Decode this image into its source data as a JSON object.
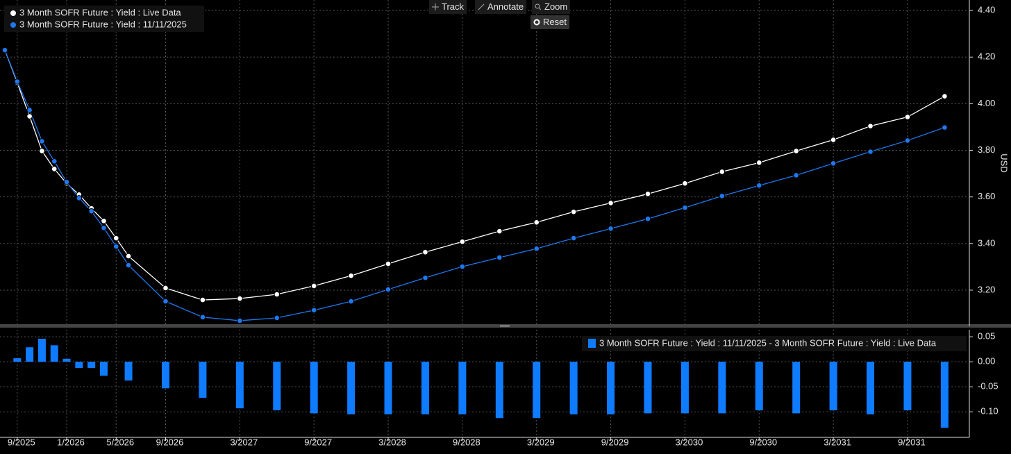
{
  "chart_data": [
    {
      "type": "line",
      "y_label": "USD",
      "x": [
        "2025-08",
        "2025-09",
        "2025-10",
        "2025-11",
        "2025-12",
        "2026-01",
        "2026-02",
        "2026-03",
        "2026-04",
        "2026-05",
        "2026-06",
        "2026-09",
        "2026-12",
        "2027-03",
        "2027-06",
        "2027-09",
        "2027-12",
        "2028-03",
        "2028-06",
        "2028-09",
        "2028-12",
        "2029-03",
        "2029-06",
        "2029-09",
        "2029-12",
        "2030-03",
        "2030-06",
        "2030-09",
        "2030-12",
        "2031-03",
        "2031-06",
        "2031-09",
        "2031-12"
      ],
      "series": [
        {
          "name": "3 Month SOFR Future : Yield : Live Data",
          "color": "#ffffff",
          "values": [
            4.23,
            4.09,
            3.946,
            3.797,
            3.72,
            3.658,
            3.61,
            3.551,
            3.497,
            3.423,
            3.346,
            3.209,
            3.158,
            3.164,
            3.182,
            3.218,
            3.262,
            3.313,
            3.363,
            3.408,
            3.453,
            3.491,
            3.536,
            3.574,
            3.613,
            3.658,
            3.708,
            3.747,
            3.797,
            3.845,
            3.904,
            3.943,
            4.032
          ]
        },
        {
          "name": "3 Month SOFR Future : Yield : 11/11/2025",
          "color": "#1f78f0",
          "values": [
            4.23,
            4.095,
            3.973,
            3.839,
            3.753,
            3.664,
            3.595,
            3.539,
            3.467,
            3.387,
            3.307,
            3.152,
            3.084,
            3.069,
            3.081,
            3.114,
            3.152,
            3.203,
            3.253,
            3.301,
            3.34,
            3.378,
            3.423,
            3.464,
            3.506,
            3.554,
            3.604,
            3.649,
            3.693,
            3.744,
            3.794,
            3.842,
            3.898
          ]
        }
      ],
      "xlim": [
        "2025-08",
        "2032-02"
      ],
      "xticks": [
        {
          "value": "2025-09",
          "label": "9/2025"
        },
        {
          "value": "2026-01",
          "label": "1/2026"
        },
        {
          "value": "2026-05",
          "label": "5/2026"
        },
        {
          "value": "2026-09",
          "label": "9/2026"
        },
        {
          "value": "2027-03",
          "label": "3/2027"
        },
        {
          "value": "2027-09",
          "label": "9/2027"
        },
        {
          "value": "2028-03",
          "label": "3/2028"
        },
        {
          "value": "2028-09",
          "label": "9/2028"
        },
        {
          "value": "2029-03",
          "label": "3/2029"
        },
        {
          "value": "2029-09",
          "label": "9/2029"
        },
        {
          "value": "2030-03",
          "label": "3/2030"
        },
        {
          "value": "2030-09",
          "label": "9/2030"
        },
        {
          "value": "2031-03",
          "label": "3/2031"
        },
        {
          "value": "2031-09",
          "label": "9/2031"
        }
      ],
      "ylim": [
        3.045,
        4.445
      ],
      "yticks": [
        {
          "value": 3.2,
          "label": "3.20"
        },
        {
          "value": 3.4,
          "label": "3.40"
        },
        {
          "value": 3.6,
          "label": "3.60"
        },
        {
          "value": 3.8,
          "label": "3.80"
        },
        {
          "value": 4.0,
          "label": "4.00"
        },
        {
          "value": 4.2,
          "label": "4.20"
        },
        {
          "value": 4.4,
          "label": "4.40"
        }
      ],
      "grid": true,
      "legend": "upper left"
    },
    {
      "type": "bar",
      "x": [
        "2025-08",
        "2025-09",
        "2025-10",
        "2025-11",
        "2025-12",
        "2026-01",
        "2026-02",
        "2026-03",
        "2026-04",
        "2026-05",
        "2026-06",
        "2026-09",
        "2026-12",
        "2027-03",
        "2027-06",
        "2027-09",
        "2027-12",
        "2028-03",
        "2028-06",
        "2028-09",
        "2028-12",
        "2029-03",
        "2029-06",
        "2029-09",
        "2029-12",
        "2030-03",
        "2030-06",
        "2030-09",
        "2030-12",
        "2031-03",
        "2031-06",
        "2031-09",
        "2031-12"
      ],
      "series": [
        {
          "name": "3 Month SOFR Future : Yield : 11/11/2025 - 3 Month SOFR Future : Yield : Live Data",
          "color": "#0f7bff",
          "values": [
            null,
            0.007,
            0.029,
            0.046,
            0.033,
            0.006,
            -0.0125,
            -0.0125,
            -0.028,
            null,
            -0.0375,
            -0.053,
            -0.072,
            -0.093,
            -0.097,
            -0.103,
            -0.105,
            -0.105,
            -0.105,
            -0.105,
            -0.1125,
            -0.1125,
            -0.105,
            -0.105,
            -0.103,
            -0.103,
            -0.103,
            -0.097,
            -0.103,
            -0.097,
            -0.105,
            -0.097,
            -0.132
          ]
        }
      ],
      "xlim": [
        "2025-08",
        "2032-02"
      ],
      "ylim": [
        -0.151,
        0.064
      ],
      "yticks": [
        {
          "value": -0.1,
          "label": "-0.10"
        },
        -0.05,
        {
          "value": 0,
          "label": "0.00"
        },
        0.05
      ],
      "grid": true,
      "legend": "upper right"
    }
  ],
  "toolbar": {
    "buttons": [
      "Track",
      "Annotate",
      "Zoom"
    ],
    "reset": "Reset"
  }
}
